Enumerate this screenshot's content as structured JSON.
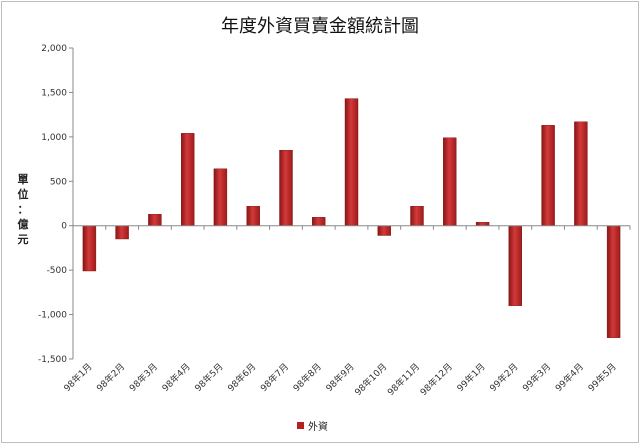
{
  "chart_data": {
    "type": "bar",
    "title": "年度外資買賣金額統計圖",
    "ylabel_lines": [
      "單",
      "位",
      "：",
      "億",
      "元"
    ],
    "categories": [
      "98年1月",
      "98年2月",
      "98年3月",
      "98年4月",
      "98年5月",
      "98年6月",
      "98年7月",
      "98年8月",
      "98年9月",
      "98年10月",
      "98年11月",
      "98年12月",
      "99年1月",
      "99年2月",
      "99年3月",
      "99年4月",
      "99年5月"
    ],
    "series": [
      {
        "name": "外資",
        "color": "#b22222",
        "values": [
          -510,
          -150,
          130,
          1040,
          640,
          220,
          850,
          95,
          1430,
          -110,
          220,
          990,
          40,
          -900,
          1130,
          1170,
          -1260
        ]
      }
    ],
    "ylim": [
      -1500,
      2000
    ],
    "yticks": [
      -1500,
      -1000,
      -500,
      0,
      500,
      1000,
      1500,
      2000
    ],
    "ytick_labels": [
      "-1,500",
      "-1,000",
      "-500",
      "0",
      "500",
      "1,000",
      "1,500",
      "2,000"
    ],
    "legend": {
      "position": "bottom",
      "label": "外資"
    },
    "grid": false
  }
}
